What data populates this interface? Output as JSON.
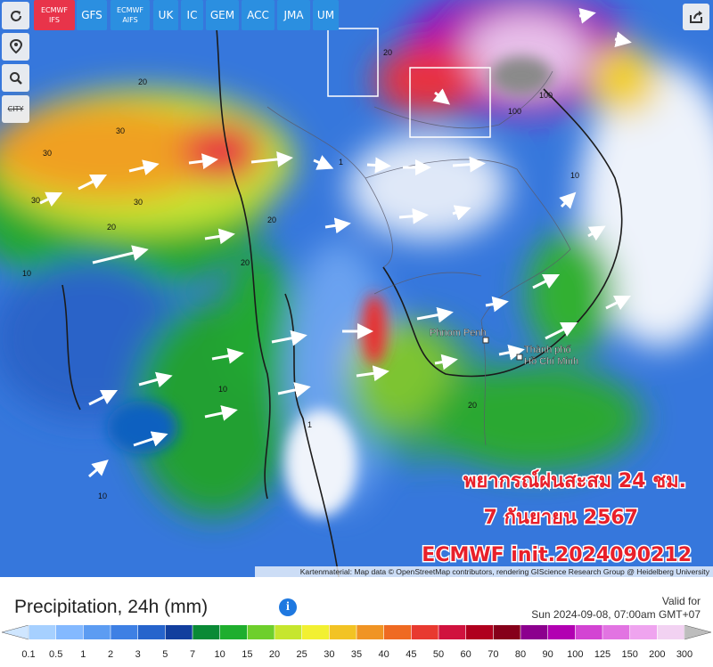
{
  "toolbar": {
    "models": [
      [
        "ECMWF",
        "IFS"
      ],
      [
        "GFS"
      ],
      [
        "ECMWF",
        "AIFS"
      ],
      [
        "UK"
      ],
      [
        "IC"
      ],
      [
        "GEM"
      ],
      [
        "ACC"
      ],
      [
        "JMA"
      ],
      [
        "UM"
      ]
    ],
    "active_model": 0,
    "city_button": "CITY"
  },
  "map": {
    "cities": [
      [
        "Phnom Penh"
      ],
      [
        "Thành phố",
        "Hồ Chí Minh"
      ]
    ],
    "contour_labels": [
      "30",
      "30",
      "30",
      "30",
      "20",
      "20",
      "20",
      "20",
      "20",
      "10",
      "10",
      "10",
      "1",
      "1",
      "100",
      "100",
      "10",
      "20"
    ],
    "overlay": [
      "พยากรณ์ฝนสะสม 24 ชม.",
      "7 กันยายน 2567",
      "ECMWF init.2024090212"
    ],
    "attribution": "Kartenmaterial: Map data © OpenStreetMap contributors, rendering GIScience Research Group @ Heidelberg University"
  },
  "legend": {
    "title": "Precipitation, 24h (mm)",
    "valid_for": "Valid for",
    "valid_time": "Sun 2024-09-08, 07:00am GMT+07",
    "ticks": [
      0.1,
      0.5,
      1,
      2,
      3,
      5,
      7,
      10,
      15,
      20,
      25,
      30,
      35,
      40,
      45,
      50,
      60,
      70,
      80,
      90,
      100,
      125,
      150,
      200,
      300
    ],
    "colors": [
      "#cfe6ff",
      "#a6d0ff",
      "#84b9ff",
      "#5c9cf2",
      "#3e80e4",
      "#2664cc",
      "#123f9e",
      "#0a8a36",
      "#1fae2e",
      "#6ecf2c",
      "#c6e62e",
      "#f2f032",
      "#f2c324",
      "#f09424",
      "#ef6a22",
      "#e83a30",
      "#d0123e",
      "#b0001e",
      "#86001a",
      "#8c008e",
      "#b200b2",
      "#d344d3",
      "#e274e2",
      "#efa4ef",
      "#f2d2f2",
      "#bdbdbd"
    ]
  }
}
